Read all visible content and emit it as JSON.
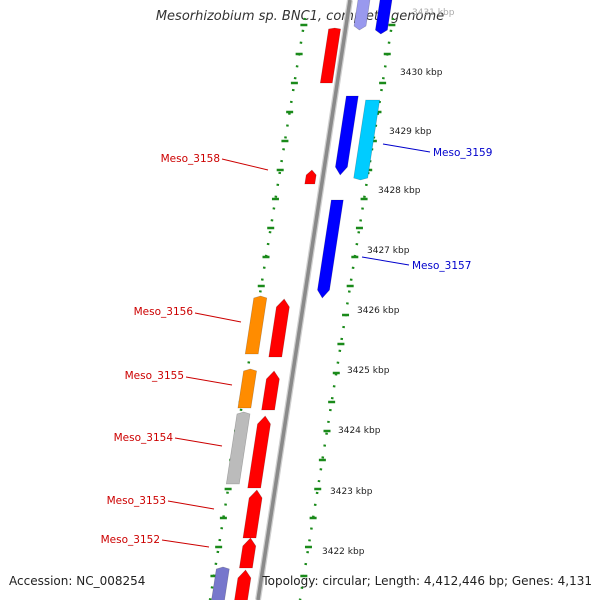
{
  "title": "Mesorhizobium sp. BNC1, complete genome",
  "accession": "Accession: NC_008254",
  "summary": "Topology: circular; Length: 4,412,446 bp; Genes: 4,131",
  "colors": {
    "backbone": "#8a8a8a",
    "forward_label": "#0000cc",
    "reverse_label": "#cc0000",
    "ring_dots": "#1a8a1a",
    "cds_red": "#ff0000",
    "cds_blue": "#0000ff",
    "cds_cyan": "#00ccff",
    "cds_orange": "#ff8c00",
    "cds_gray": "#bbbbbb",
    "cds_slate": "#7777cc"
  },
  "ticks": [
    "3431 kbp",
    "3430 kbp",
    "3429 kbp",
    "3428 kbp",
    "3427 kbp",
    "3426 kbp",
    "3425 kbp",
    "3424 kbp",
    "3423 kbp",
    "3422 kbp"
  ],
  "labels": {
    "forward": [
      "Meso_3159",
      "Meso_3157"
    ],
    "reverse": [
      "Meso_3158",
      "Meso_3156",
      "Meso_3155",
      "Meso_3154",
      "Meso_3153",
      "Meso_3152"
    ]
  }
}
